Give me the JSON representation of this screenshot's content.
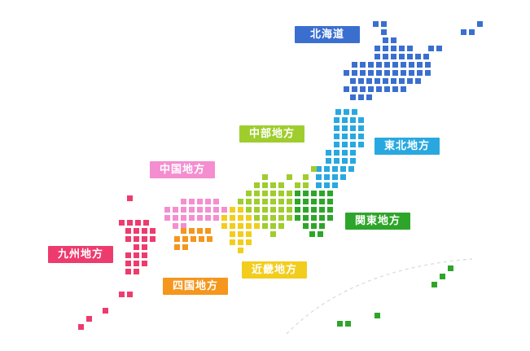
{
  "regions": [
    {
      "id": "hokkaido",
      "label": "北海道",
      "color": "#3a6fd0"
    },
    {
      "id": "tohoku",
      "label": "東北地方",
      "color": "#29a8e0"
    },
    {
      "id": "chubu",
      "label": "中部地方",
      "color": "#9fcd2e"
    },
    {
      "id": "kanto",
      "label": "関東地方",
      "color": "#2ea52a"
    },
    {
      "id": "kinki",
      "label": "近畿地方",
      "color": "#f2cd1d"
    },
    {
      "id": "chugoku",
      "label": "中国地方",
      "color": "#f48ed0"
    },
    {
      "id": "shikoku",
      "label": "四国地方",
      "color": "#f5961d"
    },
    {
      "id": "kyushu",
      "label": "九州地方",
      "color": "#ee3b6e"
    }
  ]
}
